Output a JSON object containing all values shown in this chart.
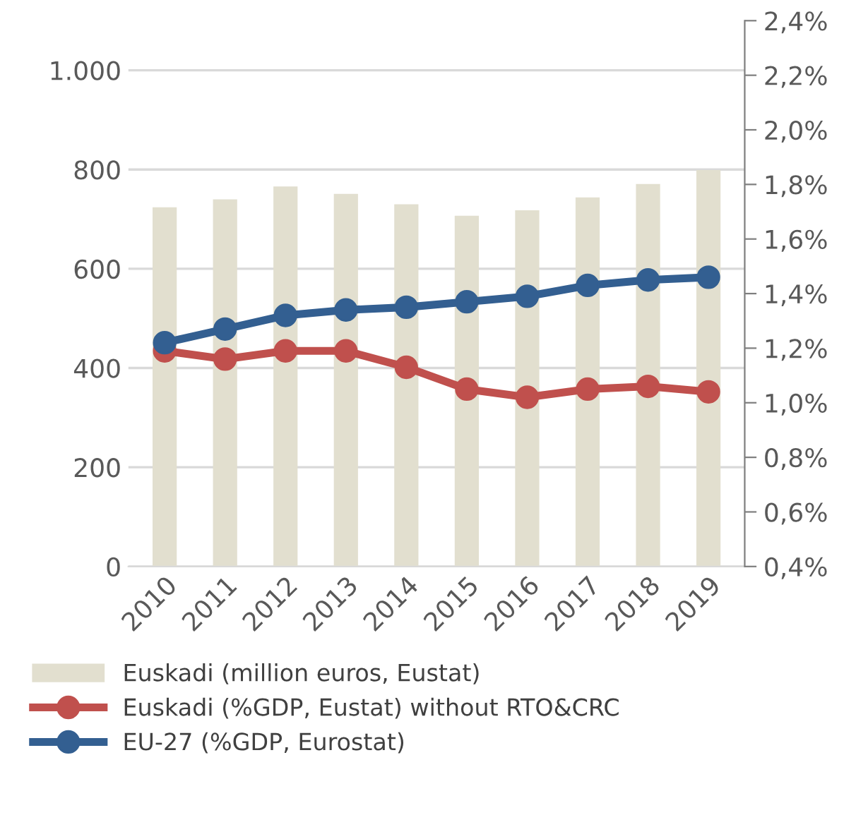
{
  "chart_data": {
    "type": "bar",
    "categories": [
      "2010",
      "2011",
      "2012",
      "2013",
      "2014",
      "2015",
      "2016",
      "2017",
      "2018",
      "2019"
    ],
    "series": [
      {
        "name": "Euskadi (million euros, Eustat)",
        "color": "#e2dfcf",
        "values": [
          724,
          740,
          766,
          751,
          730,
          707,
          718,
          744,
          771,
          799
        ]
      },
      {
        "name": "Euskadi (%GDP, Eustat) without RTO&CRC",
        "type": "line",
        "axis": "y2",
        "color": "#c0504d",
        "marker": "circle",
        "line_style": "solid",
        "values": [
          1.19,
          1.16,
          1.19,
          1.19,
          1.13,
          1.05,
          1.02,
          1.05,
          1.06,
          1.04
        ]
      },
      {
        "name": "EU-27 (%GDP, Eurostat)",
        "type": "line",
        "axis": "y2",
        "color": "#335f91",
        "marker": "circle",
        "line_style": "solid",
        "values": [
          1.22,
          1.27,
          1.32,
          1.34,
          1.35,
          1.37,
          1.39,
          1.43,
          1.45,
          1.46
        ]
      }
    ],
    "ylim": [
      0,
      1100
    ],
    "yticks": [
      0,
      200,
      400,
      600,
      800,
      {
        "value": 1000,
        "label": "1.000"
      }
    ],
    "y2lim": [
      0.4,
      2.4
    ],
    "y2ticks": [
      {
        "value": 0.4,
        "label": "0,4%"
      },
      {
        "value": 0.6,
        "label": "0,6%"
      },
      {
        "value": 0.8,
        "label": "0,8%"
      },
      {
        "value": 1.0,
        "label": "1,0%"
      },
      {
        "value": 1.2,
        "label": "1,2%"
      },
      {
        "value": 1.4,
        "label": "1,4%"
      },
      {
        "value": 1.6,
        "label": "1,6%"
      },
      {
        "value": 1.8,
        "label": "1,8%"
      },
      {
        "value": 2.0,
        "label": "2,0%"
      },
      {
        "value": 2.2,
        "label": "2,2%"
      },
      {
        "value": 2.4,
        "label": "2,4%"
      }
    ],
    "grid": "y",
    "legend": "bottom"
  }
}
